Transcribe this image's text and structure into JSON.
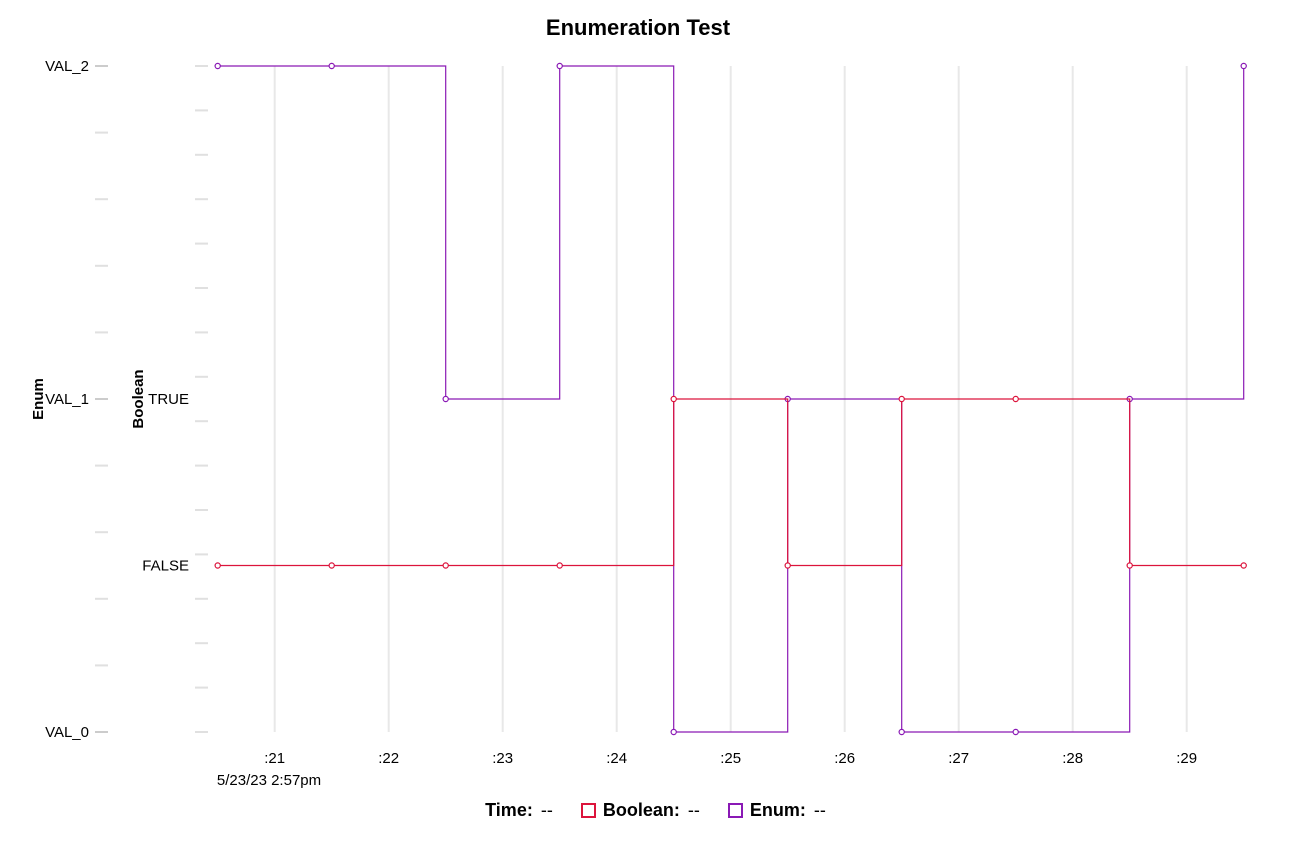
{
  "chart_data": {
    "type": "line",
    "step": true,
    "title": "Enumeration Test",
    "x_tick_labels": [
      ":21",
      ":22",
      ":23",
      ":24",
      ":25",
      ":26",
      ":27",
      ":28",
      ":29"
    ],
    "x_ticks": [
      21,
      22,
      23,
      24,
      25,
      26,
      27,
      28,
      29
    ],
    "x_range": [
      19.95,
      29.95
    ],
    "date_label": "5/23/23 2:57pm",
    "grid": true,
    "axes": {
      "enum": {
        "title": "Enum",
        "categories": [
          "VAL_0",
          "VAL_1",
          "VAL_2"
        ],
        "range": [
          0,
          2
        ]
      },
      "boolean": {
        "title": "Boolean",
        "categories": [
          "FALSE",
          "TRUE"
        ],
        "range": [
          -1,
          3
        ]
      }
    },
    "series": [
      {
        "name": "Boolean",
        "axis": "boolean",
        "color": "#dc143c",
        "x": [
          20.5,
          21.5,
          22.5,
          23.5,
          24.5,
          25.5,
          26.5,
          27.5,
          28.5,
          29.5
        ],
        "values": [
          "FALSE",
          "FALSE",
          "FALSE",
          "FALSE",
          "TRUE",
          "FALSE",
          "TRUE",
          "TRUE",
          "FALSE",
          "FALSE"
        ]
      },
      {
        "name": "Enum",
        "axis": "enum",
        "color": "#8a19b5",
        "x": [
          20.5,
          21.5,
          22.5,
          23.5,
          24.5,
          25.5,
          26.5,
          27.5,
          28.5,
          29.5
        ],
        "values": [
          "VAL_2",
          "VAL_2",
          "VAL_1",
          "VAL_2",
          "VAL_0",
          "VAL_1",
          "VAL_0",
          "VAL_0",
          "VAL_1",
          "VAL_2"
        ]
      }
    ]
  },
  "legend": {
    "time_label": "Time:",
    "time_value": "--",
    "boolean_label": "Boolean:",
    "boolean_value": "--",
    "enum_label": "Enum:",
    "enum_value": "--"
  }
}
